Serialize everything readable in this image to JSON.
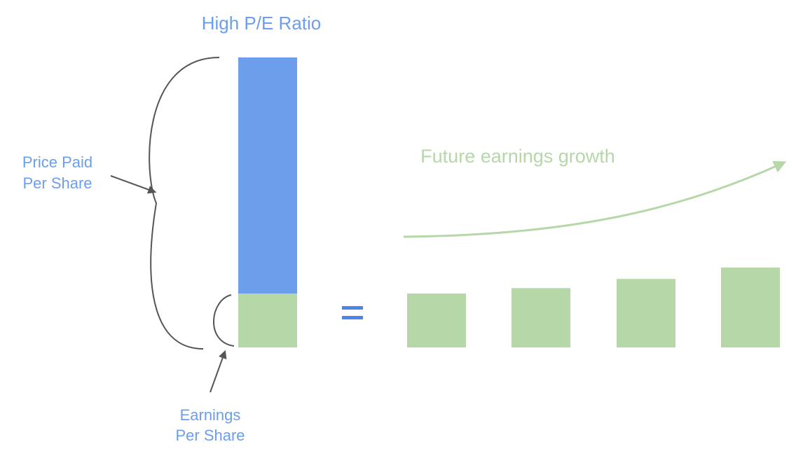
{
  "title": "High P/E Ratio",
  "labels": {
    "price_paid": [
      "Price Paid",
      "Per Share"
    ],
    "earnings": [
      "Earnings",
      "Per Share"
    ],
    "future_growth": "Future earnings growth"
  },
  "symbols": {
    "equals": "="
  },
  "colors": {
    "blue": "#6d9eeb",
    "green": "#b6d7a8",
    "bracket": "#555555"
  },
  "stack": {
    "price_share": 0.81,
    "earnings_share": 0.19
  },
  "future_earnings_relative": [
    1.0,
    1.1,
    1.27,
    1.48
  ]
}
